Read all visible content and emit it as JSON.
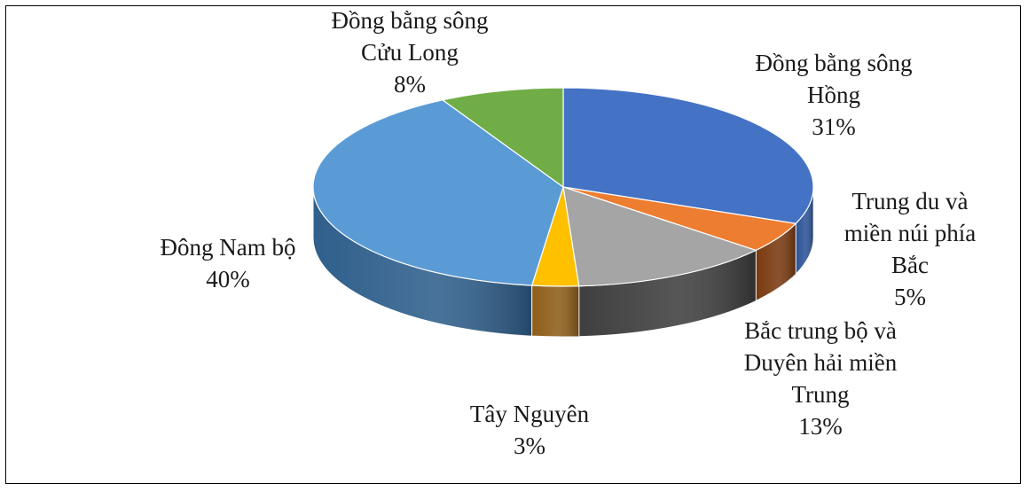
{
  "chart_data": {
    "type": "pie",
    "style": "3d",
    "title": "",
    "legend": "none",
    "slices": [
      {
        "label": "Đồng bằng sông Hồng",
        "label_lines": [
          "Đồng bằng sông",
          "Hồng"
        ],
        "value_label": "31%",
        "value": 31,
        "color": "#4472C4",
        "side_color": "#2E5597"
      },
      {
        "label": "Trung du và miền núi phía Bắc",
        "label_lines": [
          "Trung du và",
          "miền núi phía",
          "Bắc"
        ],
        "value_label": "5%",
        "value": 5,
        "color": "#ED7D31",
        "side_color": "#7A3A10"
      },
      {
        "label": "Bắc trung bộ và Duyên hải miền Trung",
        "label_lines": [
          "Bắc trung bộ và",
          "Duyên hải miền",
          "Trung"
        ],
        "value_label": "13%",
        "value": 13,
        "color": "#A5A5A5",
        "side_color": "#3F3F3F"
      },
      {
        "label": "Tây Nguyên",
        "label_lines": [
          "Tây Nguyên"
        ],
        "value_label": "3%",
        "value": 3,
        "color": "#FFC000",
        "side_color": "#8E5E1A"
      },
      {
        "label": "Đông Nam bộ",
        "label_lines": [
          "Đông Nam bộ"
        ],
        "value_label": "40%",
        "value": 40,
        "color": "#5B9BD5",
        "side_color": "#2F5F8C"
      },
      {
        "label": "Đồng bằng sông Cửu Long",
        "label_lines": [
          "Đồng bằng sông",
          "Cửu Long"
        ],
        "value_label": "8%",
        "value": 8,
        "color": "#70AD47",
        "side_color": "#3F6A24"
      }
    ]
  }
}
